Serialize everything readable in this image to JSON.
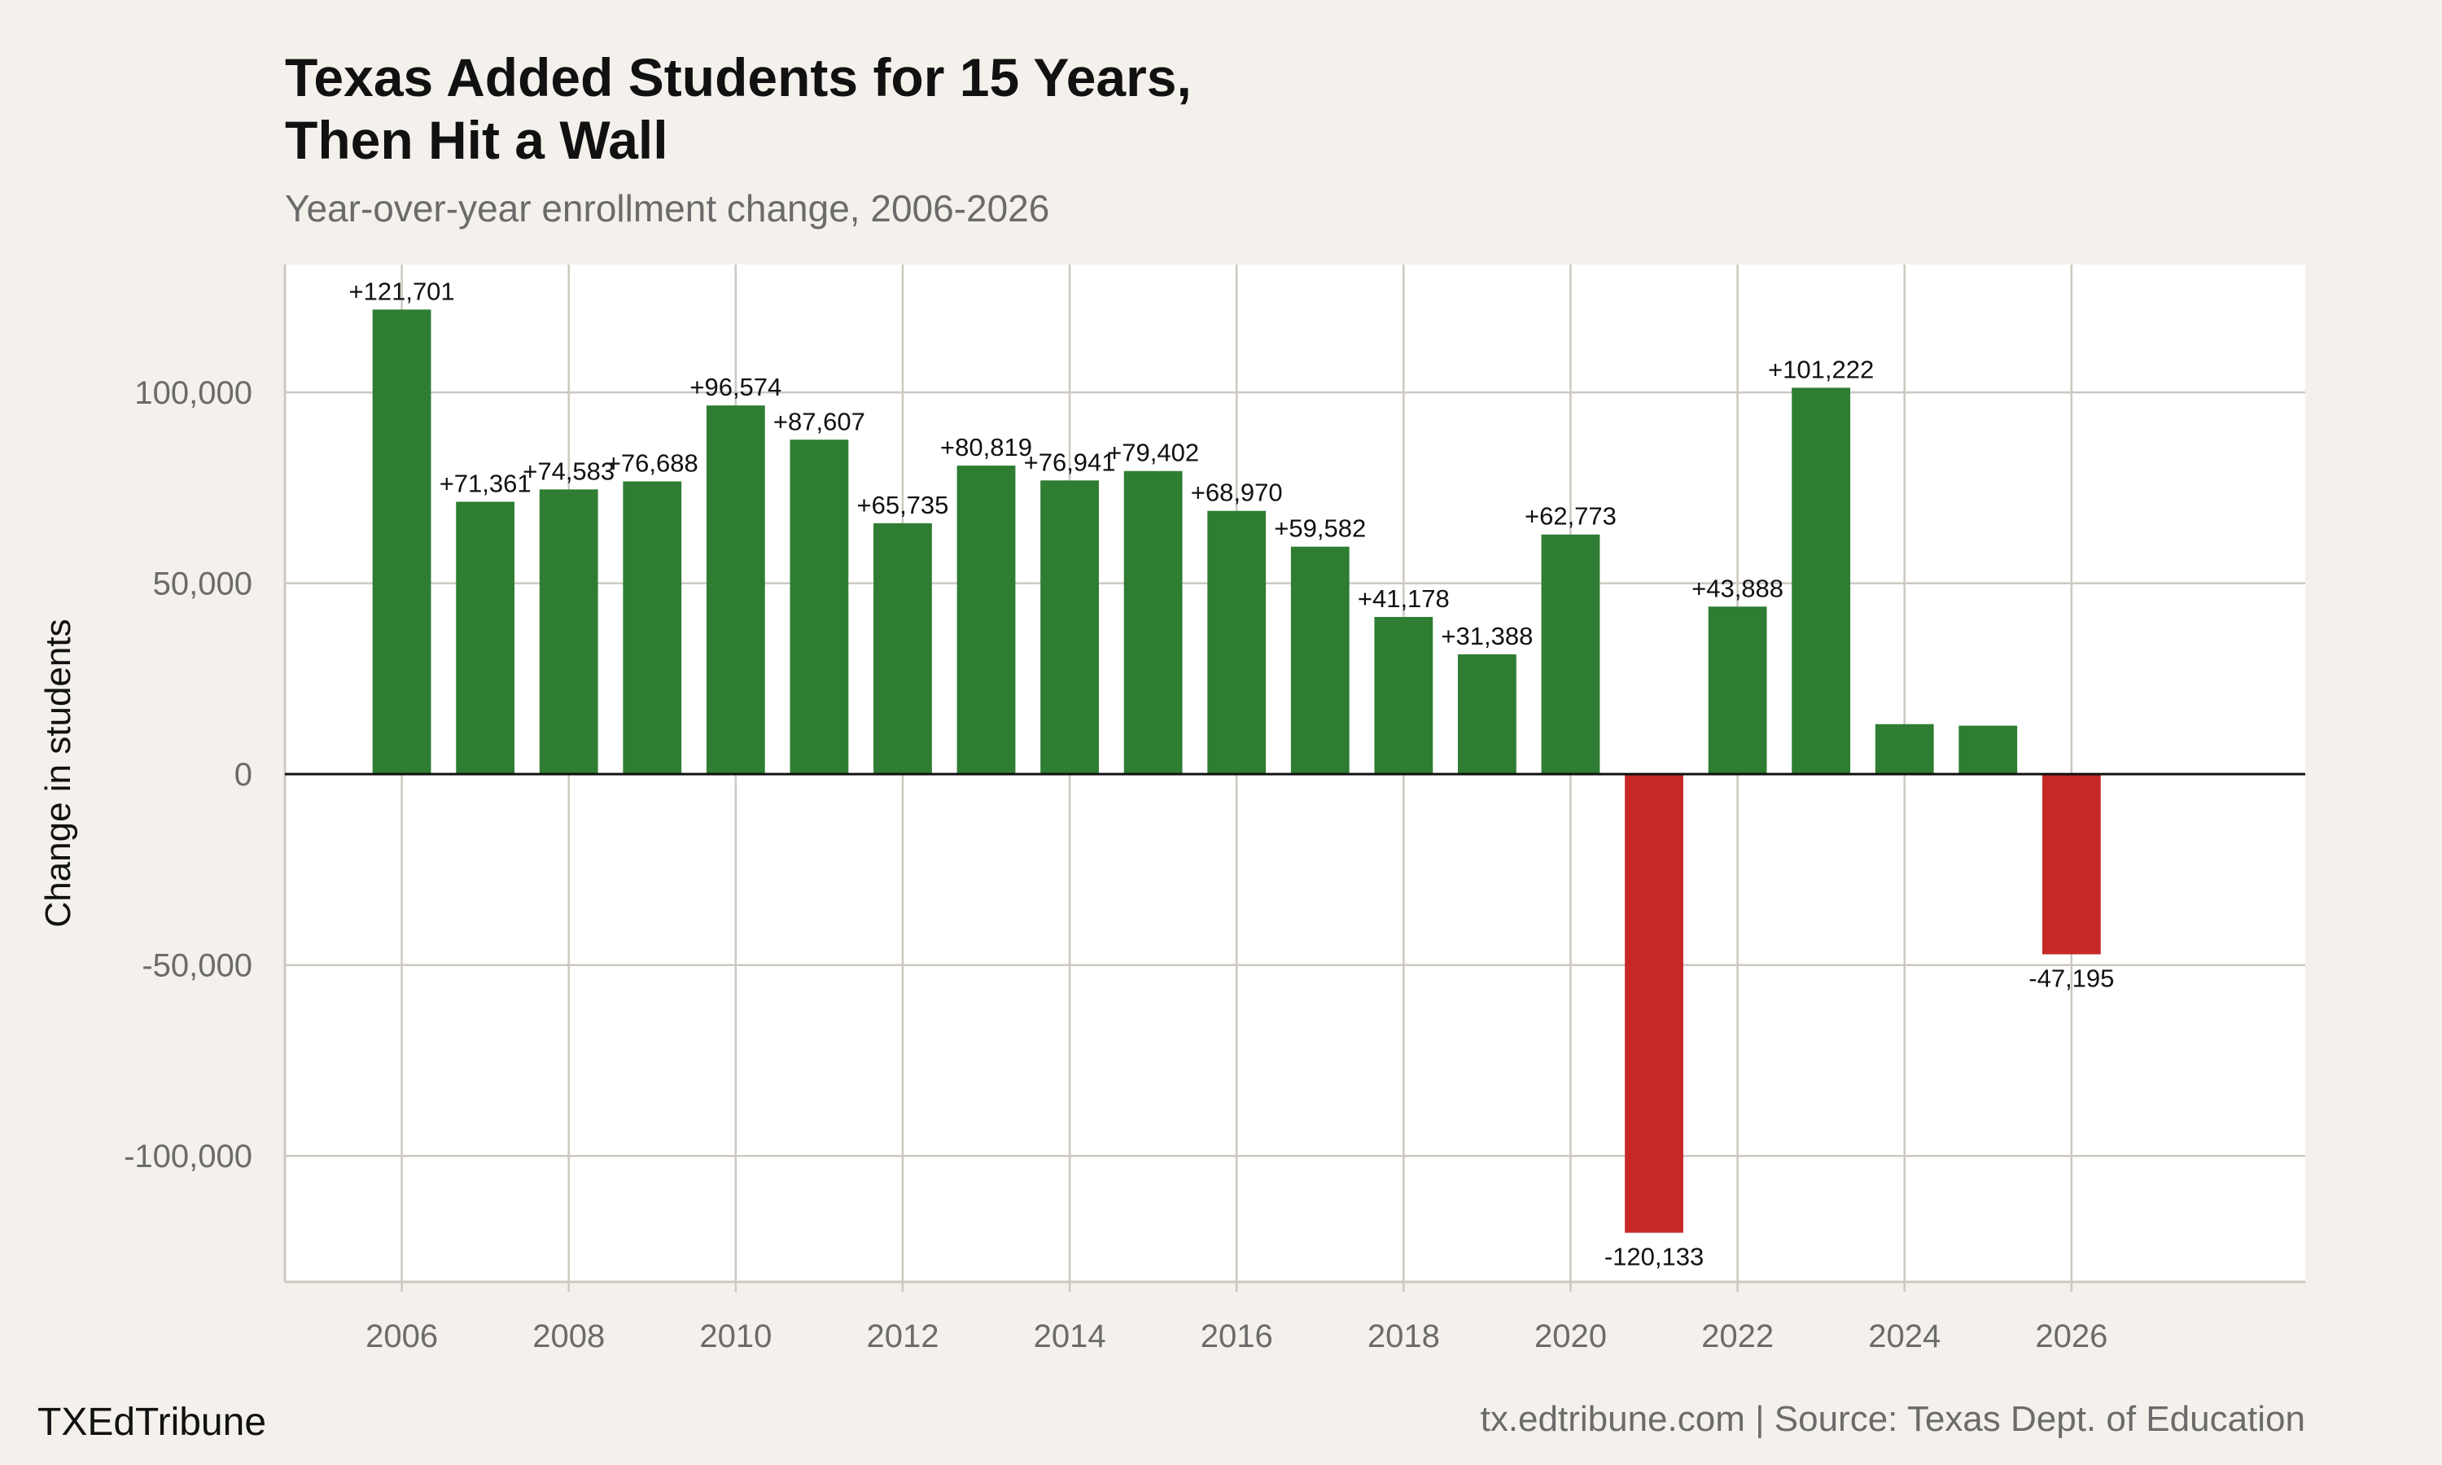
{
  "chart_data": {
    "type": "bar",
    "title_lines": [
      "Texas Added Students for 15 Years,",
      "Then Hit a Wall"
    ],
    "subtitle": "Year-over-year enrollment change, 2006-2026",
    "xlabel": "",
    "ylabel": "Change in students",
    "x": [
      2006,
      2007,
      2008,
      2009,
      2010,
      2011,
      2012,
      2013,
      2014,
      2015,
      2016,
      2017,
      2018,
      2019,
      2020,
      2021,
      2022,
      2023,
      2024,
      2025,
      2026
    ],
    "values": [
      121701,
      71361,
      74583,
      76688,
      96574,
      87607,
      65735,
      80819,
      76941,
      79402,
      68970,
      59582,
      41178,
      31388,
      62773,
      -120133,
      43888,
      101222,
      13100,
      12700,
      -47195
    ],
    "data_labels": [
      "+121,701",
      "+71,361",
      "+74,583",
      "+76,688",
      "+96,574",
      "+87,607",
      "+65,735",
      "+80,819",
      "+76,941",
      "+79,402",
      "+68,970",
      "+59,582",
      "+41,178",
      "+31,388",
      "+62,773",
      "-120,133",
      "+43,888",
      "+101,222",
      "",
      "",
      "-47,195"
    ],
    "xticks": [
      2006,
      2008,
      2010,
      2012,
      2014,
      2016,
      2018,
      2020,
      2022,
      2024,
      2026
    ],
    "yticks": [
      100000,
      50000,
      0,
      -50000,
      -100000
    ],
    "ytick_labels": [
      "100,000",
      "50,000",
      "0",
      "-50,000",
      "-100,000"
    ],
    "ylim": [
      -133000,
      133500
    ],
    "xlim": [
      2004.6,
      2028.8
    ],
    "grid": true,
    "colors": {
      "positive": "#2e7d32",
      "negative": "#c62828",
      "background": "#f4f1ec",
      "panel": "#ffffff",
      "grid": "#cdc8c0"
    }
  },
  "footer": {
    "brand": "TXEdTribune",
    "source": "tx.edtribune.com | Source: Texas Dept. of Education"
  }
}
